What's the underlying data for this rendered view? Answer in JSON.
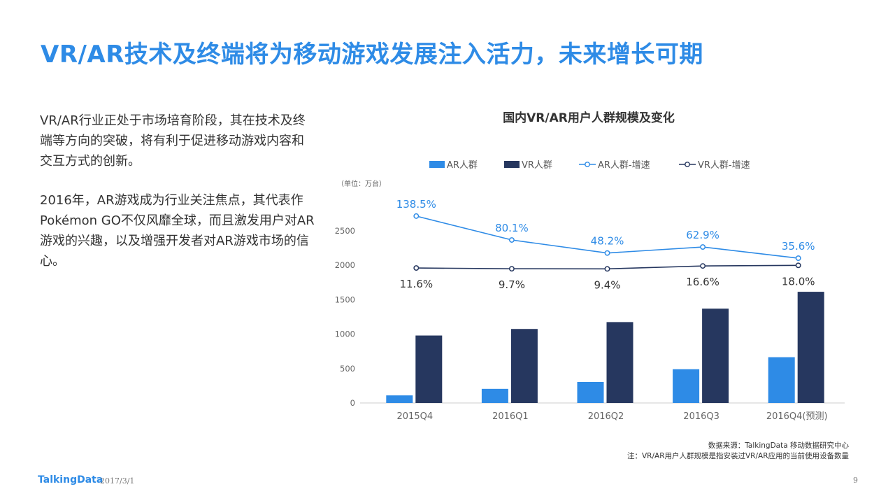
{
  "title": "VR/AR技术及终端将为移动游戏发展注入活力，未来增长可期",
  "paragraphs": [
    "VR/AR行业正处于市场培育阶段，其在技术及终端等方向的突破，将有利于促进移动游戏内容和交互方式的创新。",
    "2016年，AR游戏成为行业关注焦点，其代表作Pokémon GO不仅风靡全球，而且激发用户对AR游戏的兴趣，以及增强开发者对AR游戏市场的信心。"
  ],
  "chart_data": {
    "type": "bar",
    "title": "国内VR/AR用户人群规模及变化",
    "unit": "（单位：万台）",
    "categories": [
      "2015Q4",
      "2016Q1",
      "2016Q2",
      "2016Q3",
      "2016Q4(预测)"
    ],
    "ylim": [
      0,
      2500
    ],
    "yticks": [
      0,
      500,
      1000,
      1500,
      2000,
      2500
    ],
    "legend_position": "top",
    "series": [
      {
        "name": "AR人群",
        "kind": "bar",
        "color": "#2e8be6",
        "values": [
          110,
          205,
          305,
          490,
          665
        ]
      },
      {
        "name": "VR人群",
        "kind": "bar",
        "color": "#26375f",
        "values": [
          980,
          1075,
          1175,
          1370,
          1615
        ]
      },
      {
        "name": "AR人群-增速",
        "kind": "line",
        "color": "#2e8be6",
        "labels": [
          "138.5%",
          "80.1%",
          "48.2%",
          "62.9%",
          "35.6%"
        ],
        "values": [
          138.5,
          80.1,
          48.2,
          62.9,
          35.6
        ]
      },
      {
        "name": "VR人群-增速",
        "kind": "line",
        "color": "#26375f",
        "labels": [
          "11.6%",
          "9.7%",
          "9.4%",
          "16.6%",
          "18.0%"
        ],
        "values": [
          11.6,
          9.7,
          9.4,
          16.6,
          18.0
        ]
      }
    ]
  },
  "source": "数据来源：TalkingData 移动数据研究中心",
  "note": "注：VR/AR用户人群规模是指安装过VR/AR应用的当前使用设备数量",
  "footer": {
    "logo": "TalkingData",
    "date": "2017/3/1",
    "page": "9"
  }
}
